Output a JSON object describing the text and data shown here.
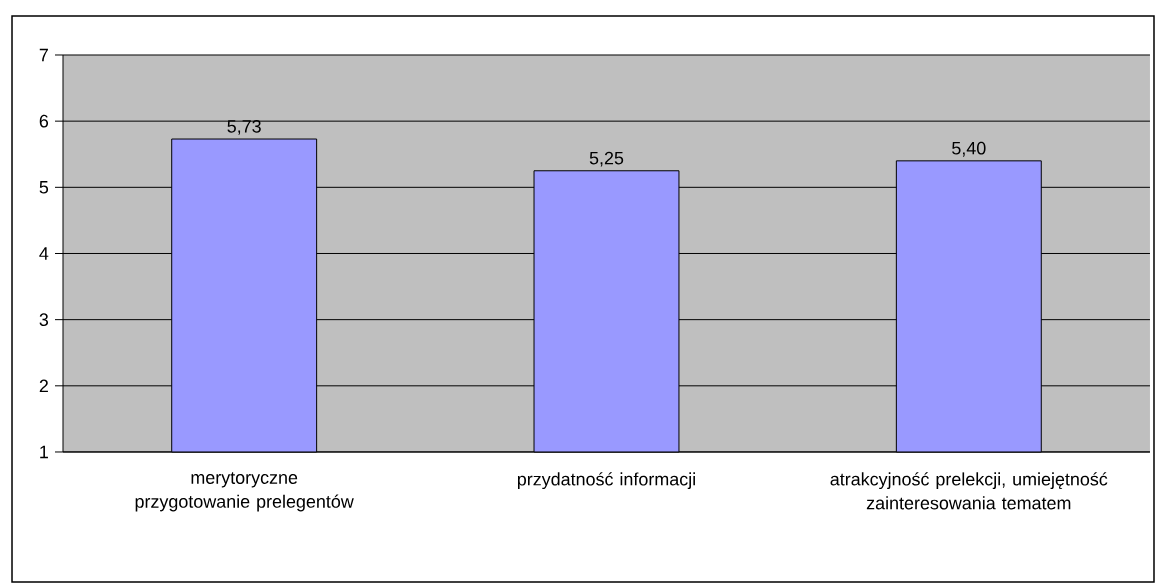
{
  "chart_data": {
    "type": "bar",
    "categories": [
      "merytoryczne przygotowanie prelegentów",
      "przydatność informacji",
      "atrakcyjność prelekcji, umiejętność zainteresowania tematem"
    ],
    "values": [
      5.73,
      5.25,
      5.4
    ],
    "value_labels": [
      "5,73",
      "5,25",
      "5,40"
    ],
    "color": "#9999ff",
    "ylim": [
      1,
      7
    ],
    "yticks": [
      1,
      2,
      3,
      4,
      5,
      6,
      7
    ],
    "grid": "y"
  }
}
